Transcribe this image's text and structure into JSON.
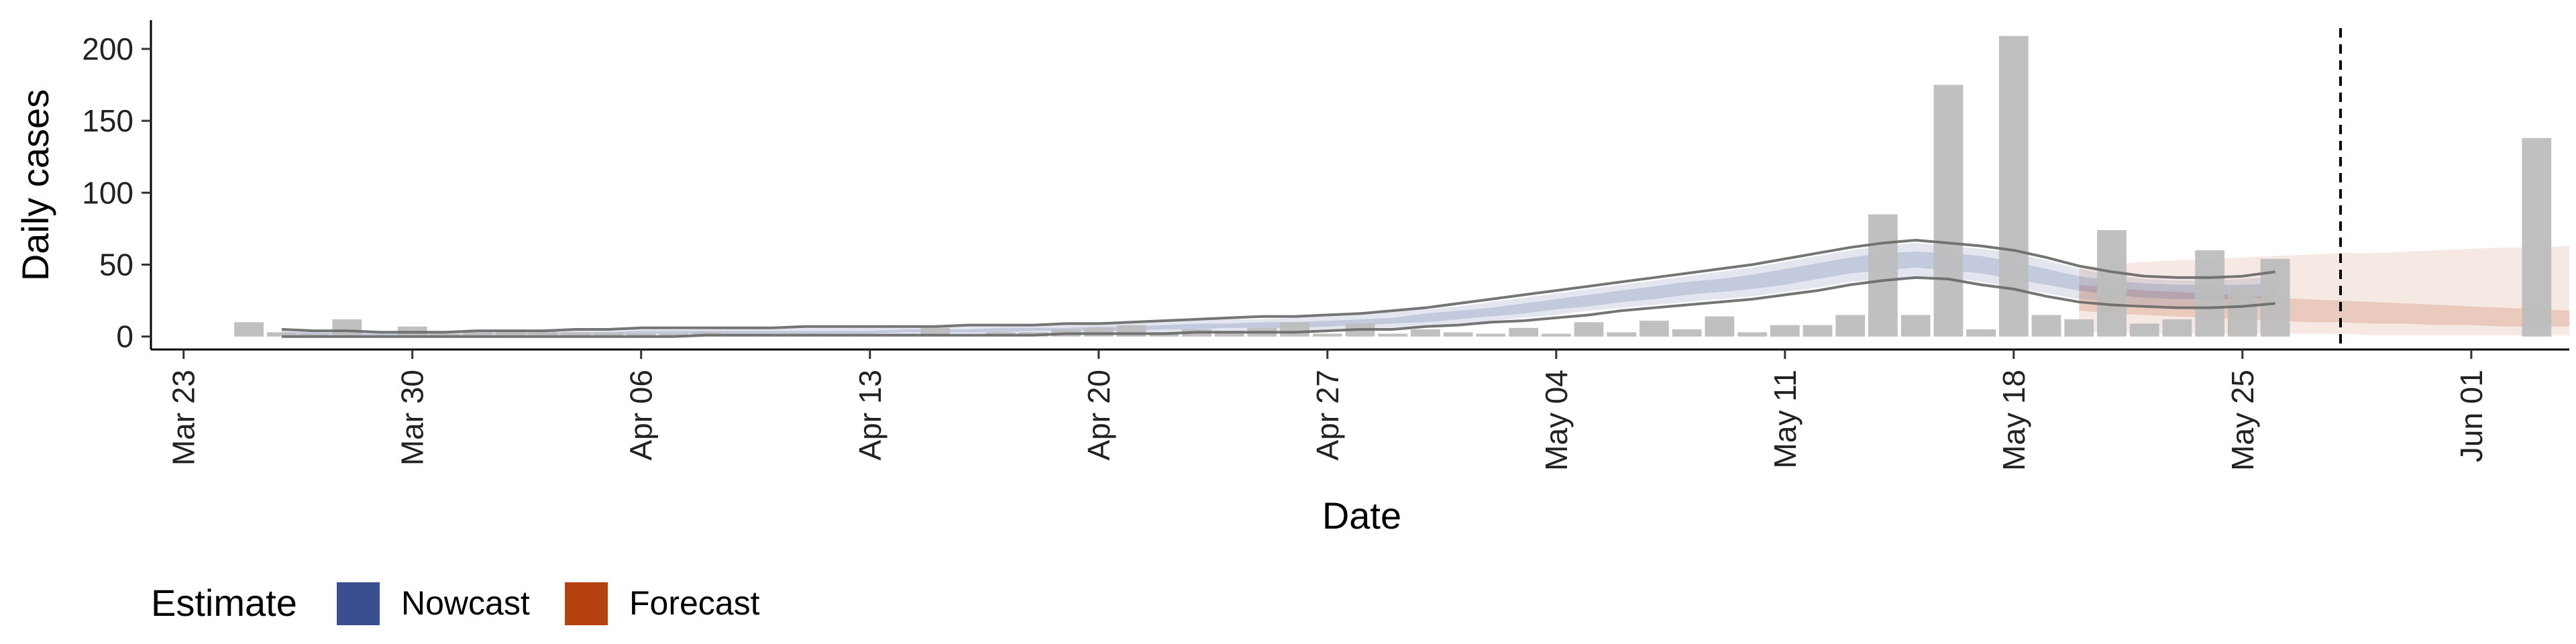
{
  "chart_data": {
    "type": "bar",
    "xlabel": "Date",
    "ylabel": "Daily cases",
    "x_ticks": [
      "Mar 23",
      "Mar 30",
      "Apr 06",
      "Apr 13",
      "Apr 20",
      "Apr 27",
      "May 04",
      "May 11",
      "May 18",
      "May 25",
      "Jun 01"
    ],
    "y_ticks": [
      0,
      50,
      100,
      150,
      200
    ],
    "xlim": [
      "2020-03-22",
      "2020-06-04"
    ],
    "ylim": [
      -9,
      220
    ],
    "grid": false,
    "legend": {
      "title": "Estimate",
      "position": "bottom-left",
      "items": [
        {
          "label": "Nowcast",
          "color": "#3a4f8f"
        },
        {
          "label": "Forecast",
          "color": "#b5410f"
        }
      ]
    },
    "vline_date": "2020-05-28",
    "colors": {
      "bars": "#bdbdbd",
      "nowcast": "#3a4f8f",
      "forecast": "#b5410f",
      "bounds": "#6e6e6e",
      "axis": "#000000"
    },
    "bar_series": {
      "name": "Daily cases",
      "start_date": "2020-03-25",
      "values": [
        10,
        3,
        2,
        12,
        1,
        7,
        2,
        3,
        4,
        4,
        3,
        3,
        2,
        2,
        3,
        2,
        1,
        2,
        1,
        1,
        2,
        6,
        1,
        3,
        3,
        5,
        6,
        8,
        3,
        5,
        4,
        6,
        10,
        2,
        9,
        2,
        5,
        3,
        2,
        6,
        2,
        10,
        3,
        11,
        5,
        14,
        3,
        8,
        8,
        15,
        85,
        15,
        175,
        5,
        209,
        15,
        12,
        74,
        9,
        12,
        60,
        34,
        54,
        0,
        0,
        0,
        0,
        0,
        0,
        0,
        138
      ]
    },
    "nowcast": {
      "start_date": "2020-03-26",
      "median": [
        2,
        2,
        1,
        1,
        1,
        1,
        1,
        2,
        2,
        2,
        2,
        3,
        3,
        3,
        3,
        3,
        3,
        3,
        3,
        4,
        4,
        4,
        4,
        5,
        5,
        5,
        6,
        6,
        7,
        7,
        8,
        8,
        9,
        10,
        11,
        13,
        15,
        17,
        19,
        22,
        25,
        28,
        31,
        33,
        35,
        38,
        41,
        45,
        49,
        52,
        53,
        52,
        50,
        46,
        42,
        37,
        34,
        32,
        31,
        31,
        31,
        32
      ],
      "inner_low": [
        1,
        1,
        1,
        1,
        1,
        1,
        1,
        1,
        1,
        1,
        1,
        2,
        2,
        2,
        2,
        2,
        2,
        2,
        2,
        3,
        3,
        3,
        3,
        4,
        4,
        4,
        4,
        5,
        5,
        6,
        6,
        6,
        7,
        8,
        9,
        10,
        12,
        14,
        16,
        19,
        21,
        24,
        26,
        29,
        31,
        33,
        36,
        40,
        44,
        46,
        48,
        46,
        44,
        40,
        36,
        32,
        29,
        27,
        26,
        26,
        26,
        27
      ],
      "inner_high": [
        3,
        3,
        2,
        2,
        2,
        2,
        2,
        3,
        3,
        3,
        3,
        4,
        4,
        4,
        4,
        4,
        4,
        4,
        4,
        5,
        5,
        5,
        6,
        6,
        6,
        7,
        7,
        8,
        9,
        9,
        10,
        10,
        11,
        12,
        13,
        16,
        18,
        20,
        23,
        26,
        29,
        32,
        35,
        38,
        40,
        43,
        47,
        51,
        55,
        58,
        59,
        58,
        56,
        52,
        47,
        42,
        39,
        37,
        36,
        36,
        36,
        37
      ],
      "outer_low": [
        0,
        0,
        0,
        0,
        0,
        0,
        0,
        0,
        0,
        0,
        0,
        1,
        1,
        1,
        1,
        1,
        1,
        1,
        1,
        2,
        2,
        2,
        2,
        2,
        2,
        3,
        3,
        3,
        4,
        4,
        4,
        4,
        5,
        6,
        6,
        8,
        9,
        11,
        13,
        15,
        18,
        20,
        22,
        24,
        26,
        28,
        31,
        34,
        38,
        40,
        42,
        41,
        38,
        34,
        30,
        26,
        24,
        22,
        21,
        21,
        21,
        22
      ],
      "outer_high": [
        4,
        4,
        3,
        3,
        3,
        3,
        3,
        4,
        4,
        4,
        5,
        5,
        5,
        5,
        6,
        6,
        6,
        6,
        6,
        6,
        7,
        7,
        7,
        8,
        8,
        9,
        9,
        10,
        11,
        12,
        12,
        13,
        14,
        15,
        17,
        19,
        21,
        24,
        27,
        30,
        33,
        36,
        39,
        42,
        45,
        48,
        52,
        56,
        60,
        63,
        65,
        63,
        61,
        58,
        53,
        47,
        43,
        40,
        39,
        39,
        40,
        42
      ],
      "bound_low": [
        0,
        0,
        0,
        0,
        0,
        0,
        0,
        0,
        0,
        0,
        0,
        0,
        0,
        1,
        1,
        1,
        1,
        1,
        1,
        1,
        1,
        1,
        1,
        1,
        2,
        2,
        2,
        2,
        3,
        3,
        3,
        3,
        4,
        5,
        5,
        7,
        8,
        10,
        11,
        13,
        15,
        18,
        20,
        22,
        24,
        26,
        29,
        32,
        36,
        39,
        41,
        40,
        36,
        33,
        28,
        24,
        22,
        21,
        20,
        20,
        21,
        23
      ],
      "bound_high": [
        5,
        4,
        4,
        3,
        3,
        3,
        4,
        4,
        4,
        5,
        5,
        6,
        6,
        6,
        6,
        6,
        7,
        7,
        7,
        7,
        7,
        8,
        8,
        8,
        9,
        9,
        10,
        11,
        12,
        13,
        14,
        14,
        15,
        16,
        18,
        20,
        23,
        26,
        29,
        32,
        35,
        38,
        41,
        44,
        47,
        50,
        54,
        58,
        62,
        65,
        67,
        65,
        63,
        60,
        55,
        49,
        45,
        42,
        41,
        41,
        42,
        45
      ]
    },
    "forecast": {
      "start_date": "2020-05-20",
      "outer_low": [
        3,
        3,
        2,
        2,
        2,
        2,
        2,
        2,
        2,
        1,
        1,
        1,
        1,
        1,
        1,
        1
      ],
      "inner_low": [
        18,
        16,
        15,
        14,
        13,
        12,
        11,
        10,
        10,
        9,
        9,
        8,
        8,
        7,
        7,
        7
      ],
      "inner_high": [
        36,
        34,
        32,
        31,
        30,
        29,
        27,
        26,
        25,
        24,
        23,
        22,
        21,
        20,
        19,
        18
      ],
      "outer_high": [
        48,
        50,
        52,
        53,
        54,
        55,
        56,
        57,
        58,
        58,
        59,
        60,
        61,
        62,
        62,
        63
      ]
    }
  }
}
